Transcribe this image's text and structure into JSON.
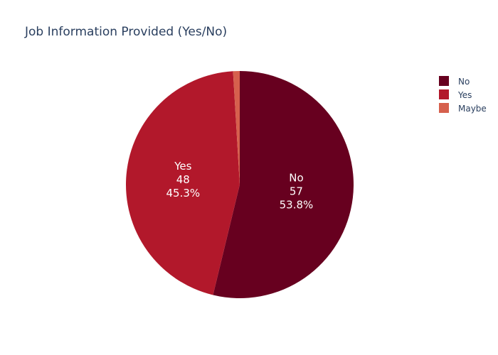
{
  "chart_data": {
    "type": "pie",
    "title": "Job Information Provided (Yes/No)",
    "categories": [
      "No",
      "Yes",
      "Maybe"
    ],
    "values": [
      57,
      48,
      1
    ],
    "percent_labels": [
      "53.8%",
      "45.3%",
      "0.9%"
    ],
    "colors": [
      "#67001f",
      "#b2182b",
      "#d6604d"
    ],
    "direction": "clockwise",
    "start": "12 o'clock",
    "slice_labels_shown": [
      "No",
      "Yes"
    ],
    "legend": {
      "position": "top-right",
      "items": [
        "No",
        "Yes",
        "Maybe"
      ]
    }
  }
}
